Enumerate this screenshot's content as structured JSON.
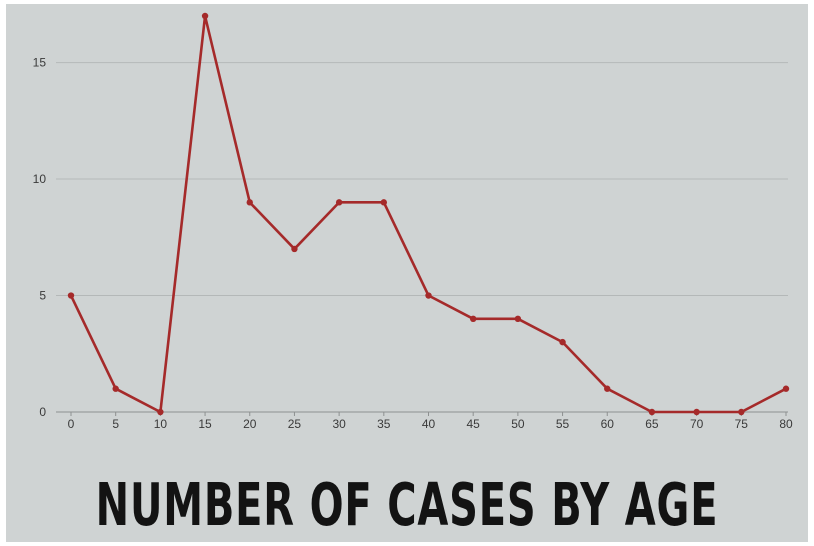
{
  "chart_data": {
    "type": "line",
    "title": "NUMBER OF CASES BY AGE",
    "xlabel": "",
    "ylabel": "",
    "x": [
      0,
      5,
      10,
      15,
      20,
      25,
      30,
      35,
      40,
      45,
      50,
      55,
      60,
      65,
      70,
      75,
      80
    ],
    "series": [
      {
        "values": [
          5,
          1,
          0,
          17,
          9,
          7,
          9,
          9,
          5,
          4,
          4,
          3,
          1,
          0,
          0,
          0,
          1
        ]
      }
    ],
    "ylim": [
      0,
      17
    ],
    "y_ticks": [
      0,
      5,
      10,
      15
    ],
    "grid": "horizontal",
    "legend": "none",
    "colors": {
      "line": "#a52a2a",
      "grid": "#b4b8b8",
      "axis": "#8d9090",
      "background": "#cfd3d3"
    }
  }
}
